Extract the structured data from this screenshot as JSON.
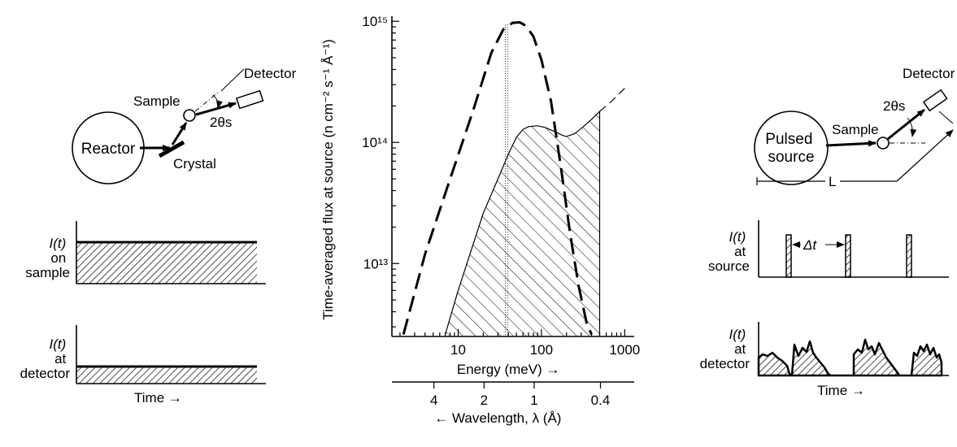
{
  "left_panel": {
    "reactor_label": "Reactor",
    "crystal_label": "Crystal",
    "sample_label": "Sample",
    "detector_label": "Detector",
    "angle_label": "2θs",
    "plot_top": {
      "y_label_lines": [
        "I(t)",
        "on",
        "sample"
      ]
    },
    "plot_bottom": {
      "y_label_lines": [
        "I(t)",
        "at",
        "detector"
      ],
      "x_label": "Time →"
    }
  },
  "middle_panel": {
    "chart_data": {
      "type": "line",
      "ylabel": "Time-averaged flux at source (n cm⁻² s⁻¹ Å⁻¹)",
      "xlabel": "Energy (meV) →",
      "x_scale": "log",
      "y_scale": "log",
      "xlim": [
        1.6,
        1300
      ],
      "ylim": [
        2500000000000.0,
        1100000000000000.0
      ],
      "x_ticks": [
        10,
        100,
        1000
      ],
      "x_tick_labels": [
        "10",
        "100",
        "1000"
      ],
      "y_ticks": [
        10000000000000.0,
        100000000000000.0,
        1000000000000000.0
      ],
      "y_tick_labels": [
        "10¹³",
        "10¹⁴",
        "10¹⁵"
      ],
      "series": [
        {
          "style": "dashed",
          "x": [
            2.2,
            4,
            8,
            15,
            25,
            35,
            45,
            55,
            65,
            80,
            100,
            130,
            170,
            220,
            280,
            350,
            400
          ],
          "y": [
            2600000000000.0,
            12000000000000.0,
            50000000000000.0,
            180000000000000.0,
            550000000000000.0,
            860000000000000.0,
            970000000000000.0,
            980000000000000.0,
            920000000000000.0,
            750000000000000.0,
            480000000000000.0,
            220000000000000.0,
            65000000000000.0,
            18000000000000.0,
            6500000000000.0,
            3200000000000.0,
            2600000000000.0
          ]
        },
        {
          "style": "hatched-area",
          "x": [
            7,
            10,
            20,
            30,
            40,
            50,
            60,
            70,
            90,
            110,
            140,
            180,
            200,
            250,
            300,
            400,
            500
          ],
          "y": [
            2600000000000.0,
            6000000000000.0,
            26000000000000.0,
            50000000000000.0,
            80000000000000.0,
            110000000000000.0,
            128000000000000.0,
            135000000000000.0,
            137000000000000.0,
            133000000000000.0,
            124000000000000.0,
            114000000000000.0,
            112000000000000.0,
            118000000000000.0,
            130000000000000.0,
            155000000000000.0,
            180000000000000.0
          ]
        },
        {
          "style": "dashed-thin",
          "x": [
            500,
            700,
            1000
          ],
          "y": [
            180000000000000.0,
            220000000000000.0,
            280000000000000.0
          ]
        }
      ],
      "shaded_band": {
        "x_from": 35,
        "x_to": 40
      },
      "secondary_axis": {
        "label": "← Wavelength, λ (Å)",
        "tick_labels": [
          "4",
          "2",
          "1",
          "0.4"
        ],
        "tick_values": [
          4,
          2,
          1,
          0.4
        ]
      }
    }
  },
  "right_panel": {
    "source_label_lines": [
      "Pulsed",
      "source"
    ],
    "sample_label": "Sample",
    "detector_label": "Detector",
    "angle_label": "2θs",
    "length_label": "L",
    "plot_top": {
      "y_label_lines": [
        "I(t)",
        "at",
        "source"
      ],
      "interval_label": "Δt"
    },
    "plot_bottom": {
      "y_label_lines": [
        "I(t)",
        "at",
        "detector"
      ],
      "x_label": "Time →"
    }
  }
}
